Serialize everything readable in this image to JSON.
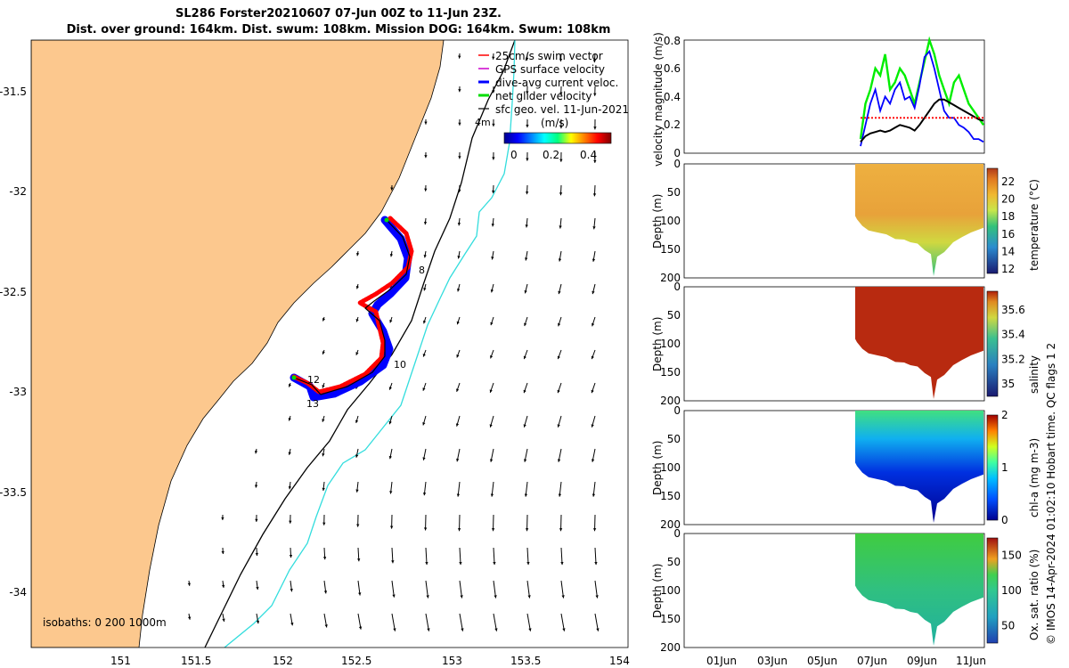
{
  "header": {
    "title_line1": "SL286 Forster20210607 07-Jun 00Z to 11-Jun 23Z.",
    "title_line2": "Dist. over ground: 164km. Dist. swum: 108km. Mission DOG: 164km. Swum: 108km"
  },
  "credit": "© IMOS 14-Apr-2024 01:02:10 Hobart time. QC flags 1  2",
  "chart_data": [
    {
      "type": "map",
      "name": "track-map",
      "xticks": [
        151,
        151.5,
        152,
        152.5,
        153,
        153.5,
        154
      ],
      "xtick_labels": [
        "151",
        "151.5",
        "152",
        "152.5",
        "153",
        "153.5",
        "154"
      ],
      "yticks": [
        -31.5,
        -32,
        -32.5,
        -33,
        -33.5,
        -34
      ],
      "ytick_labels": [
        "-31.5",
        "-32",
        "-32.5",
        "-33",
        "-33.5",
        "-34"
      ],
      "xlim": [
        150.55,
        154.1
      ],
      "ylim": [
        -34.25,
        -31.15
      ],
      "legend": [
        {
          "label": "25cm/s swim vector",
          "color": "#ff0000"
        },
        {
          "label": "GPS surface velocity",
          "color": "#cc00cc"
        },
        {
          "label": "dive-avg current veloc.",
          "color": "#0000ff"
        },
        {
          "label": "net glider velocity",
          "color": "#00dd00"
        },
        {
          "label": "sfc geo. vel. 11-Jun-2021",
          "color": "#000000"
        }
      ],
      "colorbar": {
        "unit": "(m/s)",
        "ticks": [
          "0",
          "0.2",
          "0.4"
        ],
        "range": [
          0,
          0.5
        ]
      },
      "isobaths_label": "isobaths: 0   200  1000m",
      "track_labels": [
        "8",
        "10",
        "12",
        "13",
        "4m"
      ],
      "colors": {
        "land": "#fcc88e",
        "isobath_200": "#000000",
        "isobath_1000": "#33dddd",
        "swim": "#ff0000",
        "current": "#0000ff"
      }
    },
    {
      "type": "line",
      "name": "velocity-magnitude",
      "ylabel": "velocity magnitude (m/s)",
      "ylim": [
        0,
        0.8
      ],
      "yticks": [
        "0",
        "0.2",
        "0.4",
        "0.6",
        "0.8"
      ],
      "series": [
        {
          "color": "#00ee00",
          "values": [
            0.1,
            0.35,
            0.45,
            0.6,
            0.55,
            0.7,
            0.45,
            0.5,
            0.6,
            0.55,
            0.45,
            0.35,
            0.5,
            0.65,
            0.8,
            0.7,
            0.55,
            0.45,
            0.35,
            0.5,
            0.55,
            0.45,
            0.35,
            0.3,
            0.25,
            0.2
          ]
        },
        {
          "color": "#0000ff",
          "values": [
            0.05,
            0.2,
            0.35,
            0.45,
            0.3,
            0.4,
            0.35,
            0.45,
            0.5,
            0.38,
            0.4,
            0.32,
            0.48,
            0.68,
            0.72,
            0.6,
            0.45,
            0.3,
            0.25,
            0.25,
            0.2,
            0.18,
            0.15,
            0.1,
            0.1,
            0.08
          ]
        },
        {
          "color": "#000000",
          "values": [
            0.08,
            0.12,
            0.14,
            0.15,
            0.16,
            0.15,
            0.16,
            0.18,
            0.2,
            0.19,
            0.18,
            0.16,
            0.2,
            0.25,
            0.3,
            0.35,
            0.38,
            0.38,
            0.36,
            0.34,
            0.32,
            0.3,
            0.28,
            0.26,
            0.24,
            0.23
          ]
        },
        {
          "color": "#ff0000",
          "values": [
            0.25,
            0.25,
            0.25,
            0.25,
            0.25,
            0.25,
            0.25,
            0.25,
            0.25,
            0.25,
            0.25,
            0.25,
            0.25,
            0.25,
            0.25,
            0.25,
            0.25,
            0.25,
            0.25,
            0.25,
            0.25,
            0.25,
            0.25,
            0.25,
            0.25,
            0.25
          ]
        }
      ]
    },
    {
      "type": "heatmap",
      "name": "temperature-section",
      "ylabel": "Depth (m)",
      "ylim": [
        200,
        0
      ],
      "yticks": [
        "0",
        "50",
        "100",
        "150",
        "200"
      ],
      "colorbar_label": "temperature (°C)",
      "colorbar_ticks": [
        "12",
        "14",
        "16",
        "18",
        "20",
        "22"
      ],
      "colorbar_range": [
        11.5,
        23.5
      ]
    },
    {
      "type": "heatmap",
      "name": "salinity-section",
      "ylabel": "Depth (m)",
      "ylim": [
        200,
        0
      ],
      "yticks": [
        "0",
        "50",
        "100",
        "150",
        "200"
      ],
      "colorbar_label": "salinity",
      "colorbar_ticks": [
        "35",
        "35.2",
        "35.4",
        "35.6"
      ],
      "colorbar_range": [
        34.9,
        35.75
      ]
    },
    {
      "type": "heatmap",
      "name": "chla-section",
      "ylabel": "Depth (m)",
      "ylim": [
        200,
        0
      ],
      "yticks": [
        "0",
        "50",
        "100",
        "150",
        "200"
      ],
      "colorbar_label": "chl-a (mg m-3)",
      "colorbar_ticks": [
        "0",
        "1",
        "2"
      ],
      "colorbar_range": [
        0,
        2
      ]
    },
    {
      "type": "heatmap",
      "name": "oxygen-section",
      "ylabel": "Depth (m)",
      "ylim": [
        200,
        0
      ],
      "yticks": [
        "0",
        "50",
        "100",
        "150",
        "200"
      ],
      "colorbar_label": "Ox. sat. ratio (%)",
      "colorbar_ticks": [
        "50",
        "100",
        "150"
      ],
      "colorbar_range": [
        25,
        175
      ],
      "xtick_labels": [
        "01Jun",
        "03Jun",
        "05Jun",
        "07Jun",
        "09Jun",
        "11Jun"
      ]
    }
  ]
}
